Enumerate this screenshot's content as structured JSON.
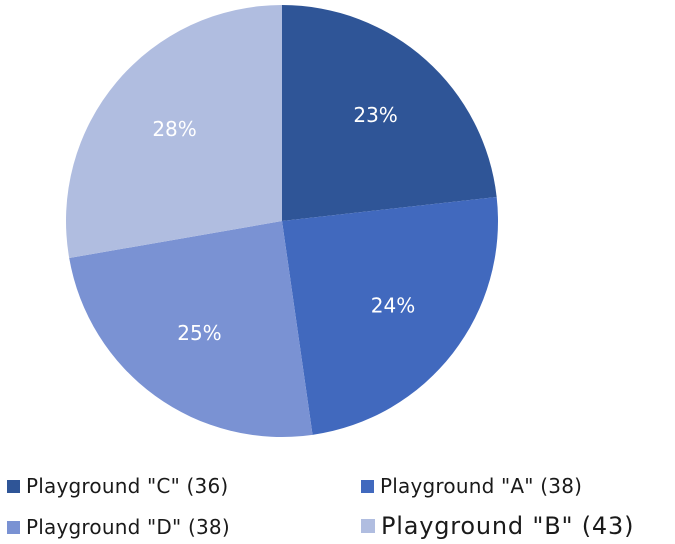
{
  "chart_data": {
    "type": "pie",
    "title": "",
    "start_angle_deg": 0,
    "direction": "clockwise",
    "slices": [
      {
        "label": "Playground \"C\" (36)",
        "value": 36,
        "percent_label": "23%",
        "color": "#2F5597"
      },
      {
        "label": "Playground \"A\" (38)",
        "value": 38,
        "percent_label": "24%",
        "color": "#4169BE"
      },
      {
        "label": "Playground \"D\" (38)",
        "value": 38,
        "percent_label": "25%",
        "color": "#7A92D3"
      },
      {
        "label": "Playground \"B\" (43)",
        "value": 43,
        "percent_label": "28%",
        "color": "#B0BDE0"
      }
    ],
    "legend": {
      "placement": "bottom",
      "columns": 2,
      "emphasized_item": "Playground \"B\" (43)"
    }
  }
}
